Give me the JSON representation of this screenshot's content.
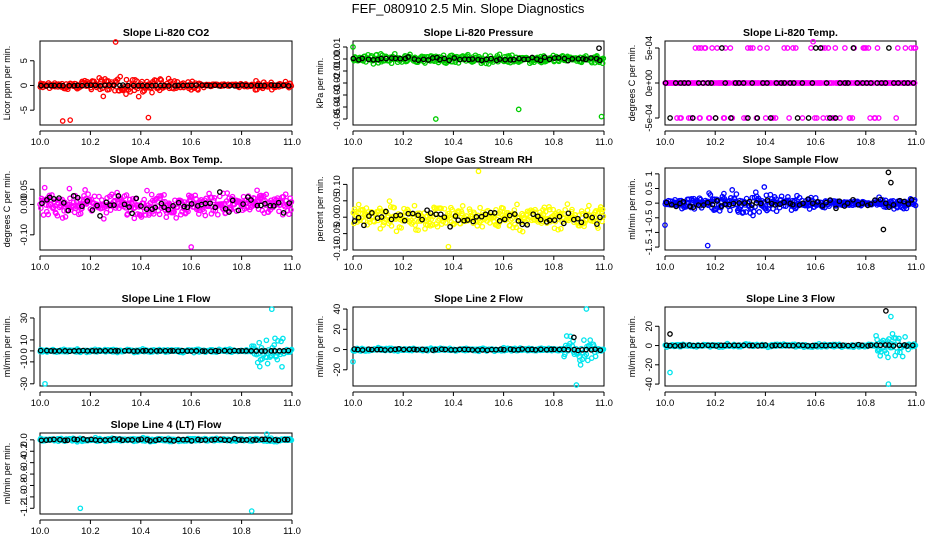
{
  "figure": {
    "title": "FEF_080910  2.5 Min. Slope Diagnostics"
  },
  "chart_data": [
    {
      "id": "co2",
      "type": "scatter",
      "title": "Slope Li-820 CO2",
      "ylabel": "Licor ppm per min.",
      "color": "#ff0000",
      "xlim": [
        10.0,
        11.0
      ],
      "ylim": [
        -8,
        9
      ],
      "yticks": [
        -5,
        0,
        5
      ],
      "ytick_labels": [
        "-5",
        "0",
        "5"
      ],
      "xticks": [
        10.0,
        10.2,
        10.4,
        10.6,
        10.8,
        11.0
      ],
      "xtick_labels": [
        "10.0",
        "10.2",
        "10.4",
        "10.6",
        "10.8",
        "11.0"
      ],
      "series": [
        {
          "name": "all",
          "color": "#ff0000",
          "pattern": "burst",
          "spread": 2.5,
          "n": 300,
          "extreme": [
            [
              10.12,
              -7
            ],
            [
              10.3,
              8.8
            ],
            [
              10.43,
              -6.5
            ],
            [
              10.09,
              -7.2
            ]
          ]
        },
        {
          "name": "selected",
          "color": "#000000",
          "pattern": "flat",
          "spread": 0.15,
          "n": 55,
          "extreme": []
        }
      ]
    },
    {
      "id": "pressure",
      "type": "scatter",
      "title": "Slope Li-820 Pressure",
      "ylabel": "kPa per min.",
      "color": "#00cc00",
      "xlim": [
        10.0,
        11.0
      ],
      "ylim": [
        -0.055,
        0.015
      ],
      "yticks": [
        0.01,
        0.0,
        -0.01,
        -0.02,
        -0.03,
        -0.04,
        -0.05
      ],
      "ytick_labels": [
        "0.01",
        "0.00",
        "-0.01",
        "-0.02",
        "-0.03",
        "-0.04",
        "-0.05"
      ],
      "xticks": [
        10.0,
        10.2,
        10.4,
        10.6,
        10.8,
        11.0
      ],
      "xtick_labels": [
        "10.0",
        "10.2",
        "10.4",
        "10.6",
        "10.8",
        "11.0"
      ],
      "series": [
        {
          "name": "all",
          "color": "#00cc00",
          "pattern": "uniform",
          "center": 0.0,
          "spread": 0.006,
          "n": 300,
          "extreme": [
            [
              10.33,
              -0.05
            ],
            [
              10.66,
              -0.042
            ],
            [
              10.99,
              -0.048
            ],
            [
              10.0,
              0.01
            ]
          ]
        },
        {
          "name": "selected",
          "color": "#000000",
          "pattern": "uniform",
          "center": 0.0,
          "spread": 0.003,
          "n": 55,
          "extreme": [
            [
              10.98,
              0.009
            ]
          ]
        }
      ]
    },
    {
      "id": "temp",
      "type": "scatter",
      "title": "Slope Li-820 Temp.",
      "ylabel": "degrees C per min.",
      "color": "#ff00ff",
      "xlim": [
        10.0,
        11.0
      ],
      "ylim": [
        -0.0006,
        0.0006
      ],
      "yticks": [
        -0.0005,
        0.0,
        0.0005
      ],
      "ytick_labels": [
        "-5e-04",
        "0e+00",
        "5e-04"
      ],
      "xticks": [
        10.0,
        10.2,
        10.4,
        10.6,
        10.8,
        11.0
      ],
      "xtick_labels": [
        "10.0",
        "10.2",
        "10.4",
        "10.6",
        "10.8",
        "11.0"
      ],
      "series": [
        {
          "name": "all",
          "color": "#ff00ff",
          "pattern": "levels",
          "levels": [
            0.0005,
            0.0,
            -0.0005
          ],
          "n": 300,
          "extreme": [
            [
              10.59,
              0.00059
            ]
          ]
        },
        {
          "name": "selected",
          "color": "#000000",
          "pattern": "levels",
          "levels": [
            0.0005,
            0.0,
            -0.0005
          ],
          "n": 55,
          "extreme": []
        }
      ]
    },
    {
      "id": "boxtemp",
      "type": "scatter",
      "title": "Slope Amb. Box Temp.",
      "ylabel": "degrees C per min.",
      "color": "#ff00ff",
      "xlim": [
        10.0,
        11.0
      ],
      "ylim": [
        -0.15,
        0.12
      ],
      "yticks": [
        -0.1,
        0.0,
        0.05
      ],
      "ytick_labels": [
        "-0.10",
        "0.00",
        "0.05"
      ],
      "xticks": [
        10.0,
        10.2,
        10.4,
        10.6,
        10.8,
        11.0
      ],
      "xtick_labels": [
        "10.0",
        "10.2",
        "10.4",
        "10.6",
        "10.8",
        "11.0"
      ],
      "series": [
        {
          "name": "all",
          "color": "#ff00ff",
          "pattern": "uniform",
          "center": 0.0,
          "spread": 0.065,
          "n": 380,
          "extreme": [
            [
              10.6,
              -0.14
            ]
          ]
        },
        {
          "name": "selected",
          "color": "#000000",
          "pattern": "uniform",
          "center": 0.0,
          "spread": 0.05,
          "n": 55,
          "extreme": []
        }
      ]
    },
    {
      "id": "rh",
      "type": "scatter",
      "title": "Slope Gas Stream RH",
      "ylabel": "percent per min.",
      "color": "#ffff00",
      "xlim": [
        10.0,
        11.0
      ],
      "ylim": [
        -0.1,
        0.15
      ],
      "yticks": [
        -0.1,
        -0.05,
        0.0,
        0.05,
        0.1
      ],
      "ytick_labels": [
        "-0.10",
        "-0.05",
        "0.00",
        "0.05",
        "0.10"
      ],
      "xticks": [
        10.0,
        10.2,
        10.4,
        10.6,
        10.8,
        11.0
      ],
      "xtick_labels": [
        "10.0",
        "10.2",
        "10.4",
        "10.6",
        "10.8",
        "11.0"
      ],
      "series": [
        {
          "name": "all",
          "color": "#ffff00",
          "pattern": "uniform",
          "center": 0.0,
          "spread": 0.06,
          "n": 360,
          "extreme": [
            [
              10.5,
              0.14
            ],
            [
              10.38,
              -0.09
            ]
          ]
        },
        {
          "name": "selected",
          "color": "#000000",
          "pattern": "uniform",
          "center": 0.0,
          "spread": 0.045,
          "n": 55,
          "extreme": []
        }
      ]
    },
    {
      "id": "sampleflow",
      "type": "scatter",
      "title": "Slope Sample Flow",
      "ylabel": "ml/min per min.",
      "color": "#0000ff",
      "xlim": [
        10.0,
        11.0
      ],
      "ylim": [
        -1.6,
        1.2
      ],
      "yticks": [
        -1.5,
        -1.0,
        -0.5,
        0.0,
        0.5,
        1.0
      ],
      "ytick_labels": [
        "-1.5",
        "-1",
        "-0.5",
        "0",
        "0.5",
        "1"
      ],
      "xticks": [
        10.0,
        10.2,
        10.4,
        10.6,
        10.8,
        11.0
      ],
      "xtick_labels": [
        "10.0",
        "10.2",
        "10.4",
        "10.6",
        "10.8",
        "11.0"
      ],
      "series": [
        {
          "name": "all",
          "color": "#0000ff",
          "pattern": "burst",
          "spread": 0.55,
          "n": 360,
          "extreme": [
            [
              10.17,
              -1.45
            ],
            [
              10.0,
              -0.75
            ]
          ]
        },
        {
          "name": "selected",
          "color": "#000000",
          "pattern": "flat",
          "spread": 0.2,
          "n": 55,
          "extreme": [
            [
              10.89,
              1.05
            ],
            [
              10.87,
              -0.9
            ],
            [
              10.9,
              0.7
            ]
          ]
        }
      ]
    },
    {
      "id": "line1",
      "type": "scatter",
      "title": "Slope Line 1 Flow",
      "ylabel": "ml/min per min.",
      "color": "#00e5ee",
      "xlim": [
        10.0,
        11.0
      ],
      "ylim": [
        -32,
        40
      ],
      "yticks": [
        -30,
        -10,
        0,
        10,
        30
      ],
      "ytick_labels": [
        "-30",
        "-10",
        "0",
        "10",
        "30"
      ],
      "xticks": [
        10.0,
        10.2,
        10.4,
        10.6,
        10.8,
        11.0
      ],
      "xtick_labels": [
        "10.0",
        "10.2",
        "10.4",
        "10.6",
        "10.8",
        "11.0"
      ],
      "series": [
        {
          "name": "all",
          "color": "#00e5ee",
          "pattern": "tailburst",
          "spread": 2.2,
          "burstspread": 22,
          "n": 320,
          "extreme": [
            [
              10.02,
              -30
            ],
            [
              10.92,
              38
            ]
          ]
        },
        {
          "name": "selected",
          "color": "#000000",
          "pattern": "flat",
          "spread": 0.5,
          "n": 55,
          "extreme": []
        }
      ]
    },
    {
      "id": "line2",
      "type": "scatter",
      "title": "Slope Line 2 Flow",
      "ylabel": "ml/min per min.",
      "color": "#00e5ee",
      "xlim": [
        10.0,
        11.0
      ],
      "ylim": [
        -36,
        42
      ],
      "yticks": [
        -20,
        0,
        20,
        40
      ],
      "ytick_labels": [
        "-20",
        "0",
        "20",
        "40"
      ],
      "xticks": [
        10.0,
        10.2,
        10.4,
        10.6,
        10.8,
        11.0
      ],
      "xtick_labels": [
        "10.0",
        "10.2",
        "10.4",
        "10.6",
        "10.8",
        "11.0"
      ],
      "series": [
        {
          "name": "all",
          "color": "#00e5ee",
          "pattern": "tailburst",
          "spread": 2.5,
          "burstspread": 22,
          "n": 320,
          "extreme": [
            [
              10.93,
              40
            ],
            [
              10.89,
              -35
            ],
            [
              10.0,
              -12
            ]
          ]
        },
        {
          "name": "selected",
          "color": "#000000",
          "pattern": "flat",
          "spread": 1.2,
          "n": 55,
          "extreme": [
            [
              10.88,
              12
            ]
          ]
        }
      ]
    },
    {
      "id": "line3",
      "type": "scatter",
      "title": "Slope Line 3 Flow",
      "ylabel": "ml/min per min.",
      "color": "#00e5ee",
      "xlim": [
        10.0,
        11.0
      ],
      "ylim": [
        -42,
        40
      ],
      "yticks": [
        -40,
        -20,
        0,
        20
      ],
      "ytick_labels": [
        "-40",
        "-20",
        "0",
        "20"
      ],
      "xticks": [
        10.0,
        10.2,
        10.4,
        10.6,
        10.8,
        11.0
      ],
      "xtick_labels": [
        "10.0",
        "10.2",
        "10.4",
        "10.6",
        "10.8",
        "11.0"
      ],
      "series": [
        {
          "name": "all",
          "color": "#00e5ee",
          "pattern": "tailburst",
          "spread": 2.5,
          "burstspread": 22,
          "n": 320,
          "extreme": [
            [
              10.02,
              -28
            ],
            [
              10.89,
              -40
            ],
            [
              10.9,
              30
            ]
          ]
        },
        {
          "name": "selected",
          "color": "#000000",
          "pattern": "flat",
          "spread": 1.2,
          "n": 55,
          "extreme": [
            [
              10.88,
              36
            ],
            [
              10.02,
              12
            ]
          ]
        }
      ]
    },
    {
      "id": "line4",
      "type": "scatter",
      "title": "Slope Line 4 (LT) Flow",
      "ylabel": "ml/min per min.",
      "color": "#00e5ee",
      "xlim": [
        10.0,
        11.0
      ],
      "ylim": [
        -1.3,
        0.12
      ],
      "yticks": [
        -1.2,
        -1.0,
        -0.8,
        -0.6,
        -0.4,
        -0.2,
        0.0
      ],
      "ytick_labels": [
        "-1.2",
        "-1.0",
        "-0.8",
        "-0.6",
        "-0.4",
        "-0.2",
        "0.0"
      ],
      "xticks": [
        10.0,
        10.2,
        10.4,
        10.6,
        10.8,
        11.0
      ],
      "xtick_labels": [
        "10.0",
        "10.2",
        "10.4",
        "10.6",
        "10.8",
        "11.0"
      ],
      "series": [
        {
          "name": "all",
          "color": "#00e5ee",
          "pattern": "flat",
          "spread": 0.045,
          "n": 360,
          "extreme": [
            [
              10.16,
              -1.2
            ],
            [
              10.84,
              -1.25
            ],
            [
              10.9,
              0.1
            ]
          ]
        },
        {
          "name": "selected",
          "color": "#000000",
          "pattern": "flat",
          "spread": 0.03,
          "n": 55,
          "extreme": []
        }
      ]
    }
  ]
}
